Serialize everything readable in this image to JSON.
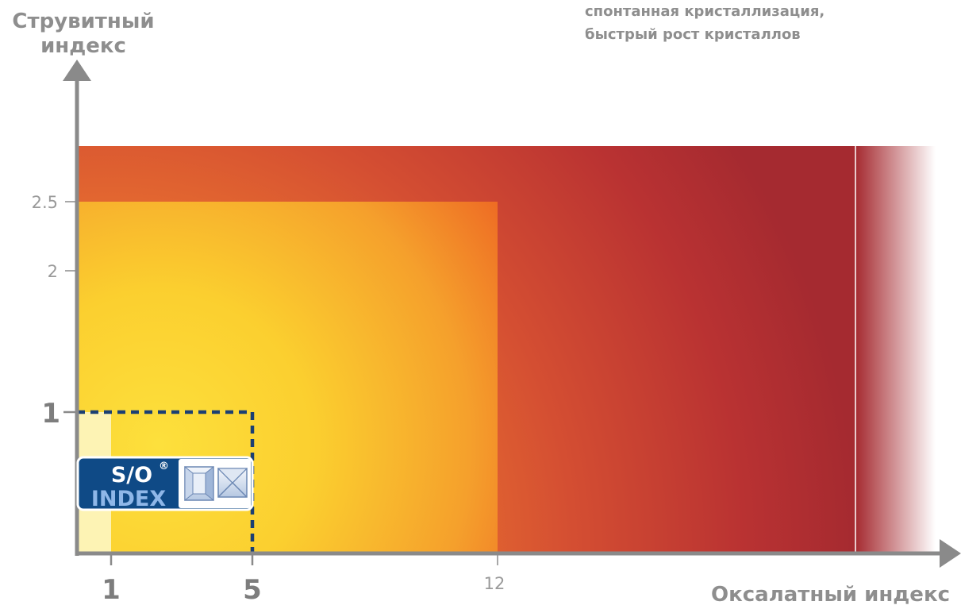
{
  "y_axis": {
    "title_line1": "Струвитный",
    "title_line2": "индекс"
  },
  "x_axis": {
    "title": "Оксалатный индекс"
  },
  "note": {
    "line1": "спонтанная кристаллизация,",
    "line2": "быстрый рост кристаллов"
  },
  "y_ticks": [
    {
      "label": "2.5",
      "value": 2.5,
      "emphasis": false
    },
    {
      "label": "2",
      "value": 2,
      "emphasis": false
    },
    {
      "label": "1",
      "value": 1,
      "emphasis": true
    }
  ],
  "x_ticks": [
    {
      "label": "1",
      "value": 1,
      "emphasis": true
    },
    {
      "label": "5",
      "value": 5,
      "emphasis": true
    },
    {
      "label": "12",
      "value": 12,
      "emphasis": false
    }
  ],
  "logo": {
    "line1": "S/O",
    "registered": "®",
    "line2": "INDEX"
  },
  "colors": {
    "axis": "#8a8a8a",
    "dark_red": "#a52a30",
    "orange": "#ef6a1f",
    "yellow": "#fbd532",
    "pale_yellow": "#fdf3b4",
    "logo_blue": "#0f4a86",
    "dashed": "#1b3f73"
  }
}
